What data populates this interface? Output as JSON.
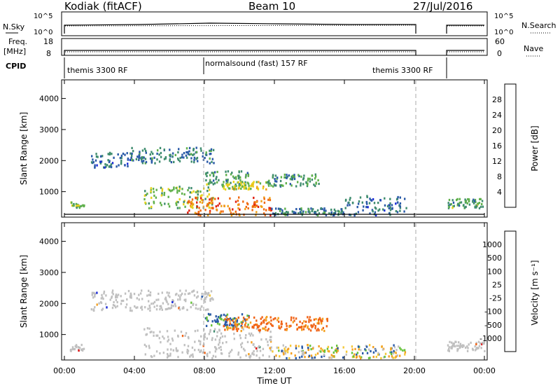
{
  "header": {
    "station": "Kodiak (fitACF)",
    "beam": "Beam 10",
    "date": "27/Jul/2016"
  },
  "panels": {
    "nsky_label": "N.Sky",
    "nsearch_label": "N.Search",
    "freq_label_top": "Freq.",
    "freq_label_unit": "[MHz]",
    "nave_label": "Nave",
    "cpid_label": "CPID",
    "nsky_left_ticks": [
      "10^5",
      "10^0"
    ],
    "nsky_right_ticks": [
      "10^5",
      "10^0"
    ],
    "freq_left_ticks": [
      "18",
      "8"
    ],
    "nave_right_ticks": [
      "60",
      "0"
    ],
    "cpid_segments": [
      "themis 3300 RF",
      "normalsound (fast) 157 RF",
      "themis 3300 RF"
    ]
  },
  "colors": {
    "power_scale": [
      "#1a2ad8",
      "#2a5aa8",
      "#3e8c6e",
      "#5fb04a",
      "#e8d21a",
      "#f0a018",
      "#f06a10",
      "#e02010"
    ],
    "velocity_scale": [
      "#e01818",
      "#f06418",
      "#f4a020",
      "#f4c838",
      "#c0c0c0",
      "#c0c0c0",
      "#66c23a",
      "#3e8c6e",
      "#2a5aa8",
      "#1a2ad8"
    ],
    "grey": "#c0c0c0"
  },
  "chart_data": [
    {
      "type": "heatmap",
      "title": "",
      "xlabel": "Time UT",
      "ylabel": "Slant Range [km]",
      "x_ticks": [
        "00:00",
        "04:00",
        "08:00",
        "12:00",
        "16:00",
        "20:00",
        "00:00"
      ],
      "x_range_hours": [
        0,
        24
      ],
      "ylim": [
        180,
        4600
      ],
      "y_ticks": [
        1000,
        2000,
        3000,
        4000
      ],
      "colorbar": {
        "label": "Power [dB]",
        "range": [
          0,
          32
        ],
        "ticks": [
          4,
          8,
          12,
          16,
          20,
          24,
          28
        ]
      },
      "data_gap_hours": [
        20,
        21.7
      ],
      "regions": [
        {
          "x": [
            0.3,
            1.1
          ],
          "y": [
            500,
            700
          ],
          "level": 0.45
        },
        {
          "x": [
            1.5,
            3.8
          ],
          "y": [
            1800,
            2300
          ],
          "level": 0.2
        },
        {
          "x": [
            3.8,
            8.5
          ],
          "y": [
            1950,
            2450
          ],
          "level": 0.25
        },
        {
          "x": [
            4.5,
            8.5
          ],
          "y": [
            500,
            1200
          ],
          "level": 0.45
        },
        {
          "x": [
            8.0,
            10.5
          ],
          "y": [
            1250,
            1700
          ],
          "level": 0.35
        },
        {
          "x": [
            9.0,
            11.5
          ],
          "y": [
            1100,
            1350
          ],
          "level": 0.55
        },
        {
          "x": [
            11.5,
            14.5
          ],
          "y": [
            1200,
            1600
          ],
          "level": 0.3
        },
        {
          "x": [
            7.0,
            11.8
          ],
          "y": [
            250,
            850
          ],
          "level": 0.85
        },
        {
          "x": [
            11.8,
            16.0
          ],
          "y": [
            200,
            500
          ],
          "level": 0.25
        },
        {
          "x": [
            16.0,
            19.5
          ],
          "y": [
            200,
            900
          ],
          "level": 0.2
        },
        {
          "x": [
            21.8,
            24.0
          ],
          "y": [
            500,
            800
          ],
          "level": 0.35
        }
      ]
    },
    {
      "type": "heatmap",
      "title": "",
      "xlabel": "Time UT",
      "ylabel": "Slant Range [km]",
      "x_ticks": [
        "00:00",
        "04:00",
        "08:00",
        "12:00",
        "16:00",
        "20:00",
        "00:00"
      ],
      "x_range_hours": [
        0,
        24
      ],
      "ylim": [
        180,
        4600
      ],
      "y_ticks": [
        1000,
        2000,
        3000,
        4000
      ],
      "colorbar": {
        "label": "Velocity [m s⁻¹]",
        "tick_labels": [
          "1000",
          "500",
          "100",
          "25",
          "-25",
          "-100",
          "-500",
          "-1000"
        ]
      },
      "data_gap_hours": [
        20,
        21.7
      ],
      "regions": [
        {
          "x": [
            0.3,
            1.1
          ],
          "y": [
            500,
            700
          ],
          "kind": "grey"
        },
        {
          "x": [
            1.5,
            8.5
          ],
          "y": [
            1800,
            2450
          ],
          "kind": "grey"
        },
        {
          "x": [
            4.5,
            11.8
          ],
          "y": [
            250,
            1250
          ],
          "kind": "grey"
        },
        {
          "x": [
            8.0,
            10.5
          ],
          "y": [
            1250,
            1700
          ],
          "kind": "blue"
        },
        {
          "x": [
            9.0,
            15.0
          ],
          "y": [
            1150,
            1600
          ],
          "kind": "orange"
        },
        {
          "x": [
            11.8,
            19.5
          ],
          "y": [
            200,
            700
          ],
          "kind": "mixed"
        },
        {
          "x": [
            21.8,
            24.0
          ],
          "y": [
            500,
            800
          ],
          "kind": "grey"
        }
      ]
    }
  ]
}
